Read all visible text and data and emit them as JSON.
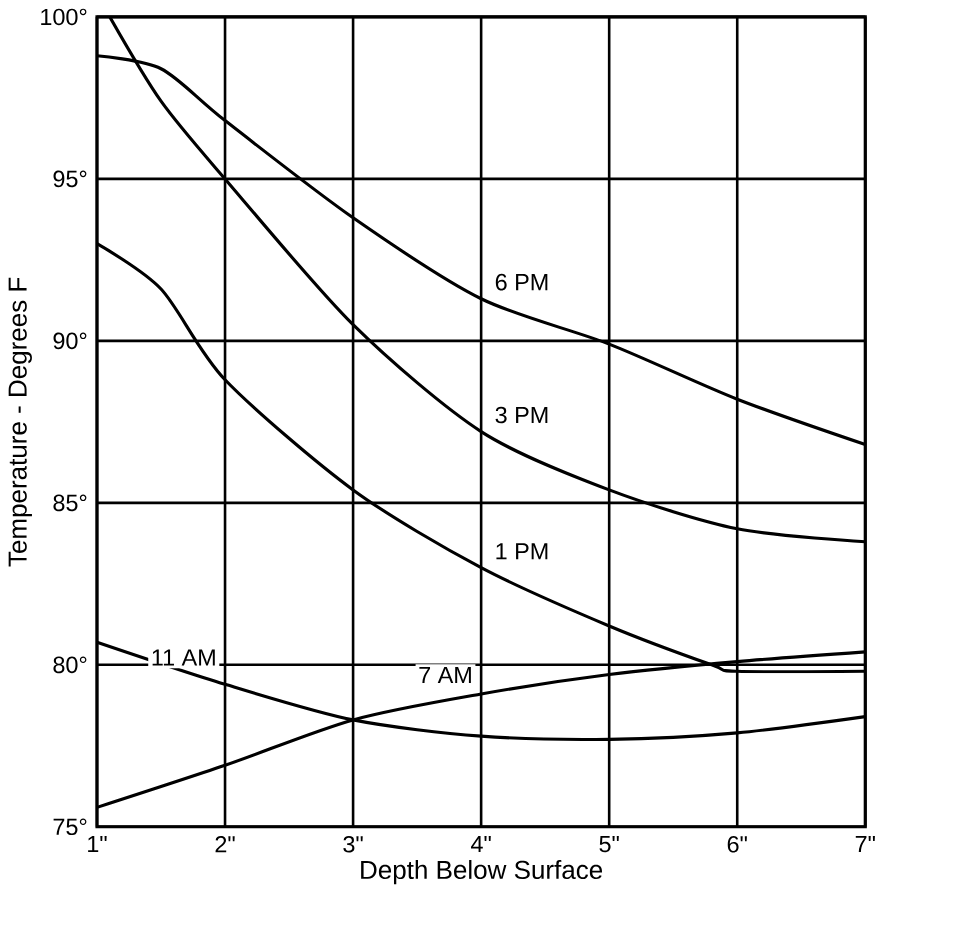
{
  "chart_data": {
    "type": "line",
    "xlabel": "Depth Below Surface",
    "ylabel": "Temperature - Degrees F",
    "xlim": [
      1,
      7
    ],
    "ylim": [
      75,
      100
    ],
    "xticks": [
      {
        "value": 1,
        "label": "1\""
      },
      {
        "value": 2,
        "label": "2\""
      },
      {
        "value": 3,
        "label": "3\""
      },
      {
        "value": 4,
        "label": "4\""
      },
      {
        "value": 5,
        "label": "5\""
      },
      {
        "value": 6,
        "label": "6\""
      },
      {
        "value": 7,
        "label": "7\""
      }
    ],
    "yticks": [
      {
        "value": 75,
        "label": "75°"
      },
      {
        "value": 80,
        "label": "80°"
      },
      {
        "value": 85,
        "label": "85°"
      },
      {
        "value": 90,
        "label": "90°"
      },
      {
        "value": 95,
        "label": "95°"
      },
      {
        "value": 100,
        "label": "100°"
      }
    ],
    "grid": true,
    "legend": false,
    "marker": "none",
    "line_style": "solid",
    "series": [
      {
        "name": "6 PM",
        "color": "#000000",
        "x": [
          1,
          1.5,
          2,
          3,
          4,
          5,
          6,
          7
        ],
        "values": [
          98.8,
          98.4,
          96.8,
          93.8,
          91.3,
          89.9,
          88.2,
          86.8
        ]
      },
      {
        "name": "3 PM",
        "color": "#000000",
        "x": [
          1.1,
          1.5,
          2,
          3,
          4,
          5,
          6,
          7
        ],
        "values": [
          100,
          97.4,
          95,
          90.5,
          87.2,
          85.4,
          84.2,
          83.8
        ]
      },
      {
        "name": "1 PM",
        "color": "#000000",
        "x": [
          1,
          1.5,
          2,
          3,
          4,
          5,
          5.8,
          6,
          7
        ],
        "values": [
          93,
          91.6,
          88.8,
          85.4,
          83,
          81.2,
          80,
          79.8,
          79.8
        ]
      },
      {
        "name": "11 AM",
        "color": "#000000",
        "x": [
          1,
          2,
          3,
          4,
          5,
          6,
          7
        ],
        "values": [
          80.7,
          79.4,
          78.3,
          77.8,
          77.7,
          77.9,
          78.4
        ]
      },
      {
        "name": "7 AM",
        "color": "#000000",
        "x": [
          1,
          2,
          3,
          4,
          5,
          6,
          7
        ],
        "values": [
          75.6,
          76.9,
          78.3,
          79.1,
          79.7,
          80.1,
          80.4
        ]
      }
    ]
  }
}
